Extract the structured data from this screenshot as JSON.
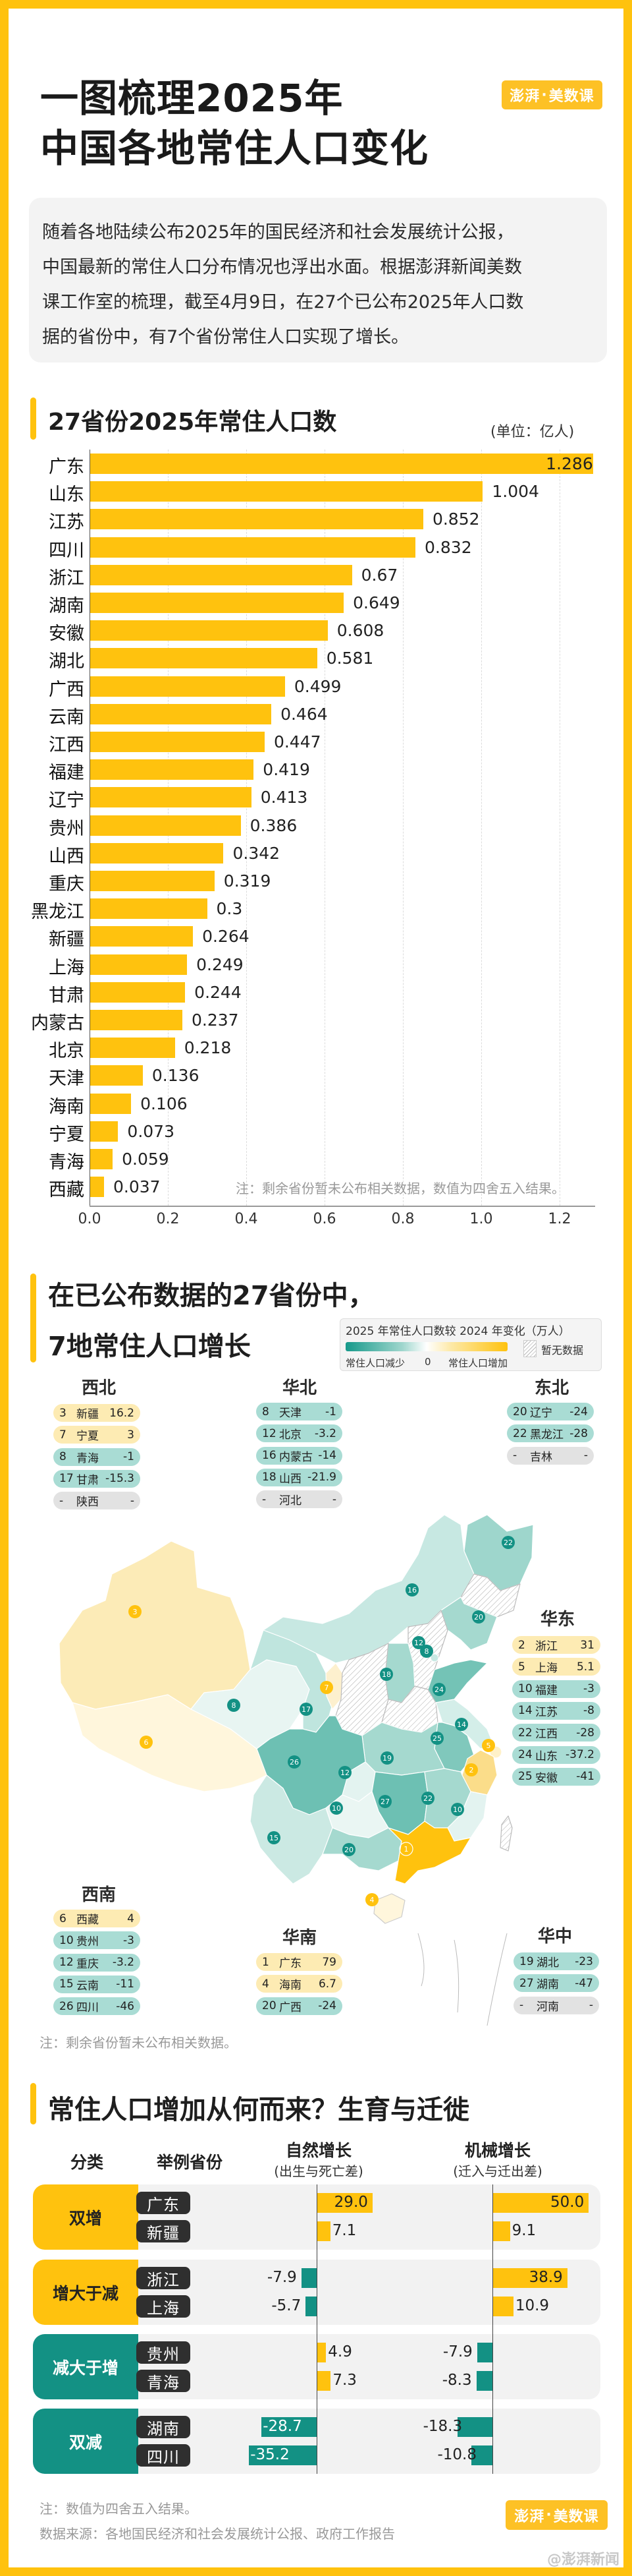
{
  "header": {
    "title_line1": "一图梳理2025年",
    "title_line2": "中国各地常住人口变化",
    "logo": {
      "left": "澎湃",
      "dot": "·",
      "right": "美数课"
    }
  },
  "intro": {
    "lines": [
      "随着各地陆续公布2025年的国民经济和社会发展统计公报，",
      "中国最新的常住人口分布情况也浮出水面。根据澎湃新闻美数",
      "课工作室的梳理，截至4月9日，在27个已公布2025年人口数",
      "据的省份中，有7个省份常住人口实现了增长。"
    ]
  },
  "colors": {
    "frame": "#FFC20E",
    "bar": "#FFC20E",
    "increase": "#FFC20E",
    "decrease": "#139184",
    "increase_pill": "#FDEBB3",
    "decrease_pill": "#A9DCD4",
    "no_data_pill": "#E2E2E2"
  },
  "chart_data": [
    {
      "type": "bar",
      "orientation": "horizontal",
      "title": "27省份2025年常住人口数",
      "unit": "(单位：亿人)",
      "categories": [
        "广东",
        "山东",
        "江苏",
        "四川",
        "浙江",
        "湖南",
        "安徽",
        "湖北",
        "广西",
        "云南",
        "江西",
        "福建",
        "辽宁",
        "贵州",
        "山西",
        "重庆",
        "黑龙江",
        "新疆",
        "上海",
        "甘肃",
        "内蒙古",
        "北京",
        "天津",
        "海南",
        "宁夏",
        "青海",
        "西藏"
      ],
      "values": [
        1.286,
        1.004,
        0.852,
        0.832,
        0.67,
        0.649,
        0.608,
        0.581,
        0.499,
        0.464,
        0.447,
        0.419,
        0.413,
        0.386,
        0.342,
        0.319,
        0.3,
        0.264,
        0.249,
        0.244,
        0.237,
        0.218,
        0.136,
        0.106,
        0.073,
        0.059,
        0.037
      ],
      "value_labels": [
        "1.286",
        "1.004",
        "0.852",
        "0.832",
        "0.67",
        "0.649",
        "0.608",
        "0.581",
        "0.499",
        "0.464",
        "0.447",
        "0.419",
        "0.413",
        "0.386",
        "0.342",
        "0.319",
        "0.3",
        "0.264",
        "0.249",
        "0.244",
        "0.237",
        "0.218",
        "0.136",
        "0.106",
        "0.073",
        "0.059",
        "0.037"
      ],
      "xticks": [
        "0.0",
        "0.2",
        "0.4",
        "0.6",
        "0.8",
        "1.0",
        "1.2"
      ],
      "xlim": [
        0,
        1.3
      ],
      "grid": "vertical dashed",
      "note": "注：剩余省份暂未公布相关数据，数值为四舍五入结果。",
      "xlabel": "",
      "ylabel": ""
    },
    {
      "type": "table",
      "title": "在已公布数据的27省份中，7地常住人口增长",
      "legend": {
        "title": "2025 年常住人口数较 2024 年变化（万人）",
        "low": "常住人口减少",
        "zero": "0",
        "high": "常住人口增加",
        "no_data": "暂无数据"
      },
      "regions": [
        {
          "name": "西北",
          "rows": [
            [
              "3",
              "新疆",
              "16.2",
              "up"
            ],
            [
              "7",
              "宁夏",
              "3",
              "up"
            ],
            [
              "8",
              "青海",
              "-1",
              "down"
            ],
            [
              "17",
              "甘肃",
              "-15.3",
              "down"
            ],
            [
              "-",
              "陕西",
              "-",
              "na"
            ]
          ]
        },
        {
          "name": "华北",
          "rows": [
            [
              "8",
              "天津",
              "-1",
              "down"
            ],
            [
              "12",
              "北京",
              "-3.2",
              "down"
            ],
            [
              "16",
              "内蒙古",
              "-14",
              "down"
            ],
            [
              "18",
              "山西",
              "-21.9",
              "down"
            ],
            [
              "-",
              "河北",
              "-",
              "na"
            ]
          ]
        },
        {
          "name": "东北",
          "rows": [
            [
              "20",
              "辽宁",
              "-24",
              "down"
            ],
            [
              "22",
              "黑龙江",
              "-28",
              "down"
            ],
            [
              "-",
              "吉林",
              "-",
              "na"
            ]
          ]
        },
        {
          "name": "华东",
          "rows": [
            [
              "2",
              "浙江",
              "31",
              "up"
            ],
            [
              "5",
              "上海",
              "5.1",
              "up"
            ],
            [
              "10",
              "福建",
              "-3",
              "down"
            ],
            [
              "14",
              "江苏",
              "-8",
              "down"
            ],
            [
              "22",
              "江西",
              "-28",
              "down"
            ],
            [
              "24",
              "山东",
              "-37.2",
              "down"
            ],
            [
              "25",
              "安徽",
              "-41",
              "down"
            ]
          ]
        },
        {
          "name": "西南",
          "rows": [
            [
              "6",
              "西藏",
              "4",
              "up"
            ],
            [
              "10",
              "贵州",
              "-3",
              "down"
            ],
            [
              "12",
              "重庆",
              "-3.2",
              "down"
            ],
            [
              "15",
              "云南",
              "-11",
              "down"
            ],
            [
              "26",
              "四川",
              "-46",
              "down"
            ]
          ]
        },
        {
          "name": "华南",
          "rows": [
            [
              "1",
              "广东",
              "79",
              "up"
            ],
            [
              "4",
              "海南",
              "6.7",
              "up"
            ],
            [
              "20",
              "广西",
              "-24",
              "down"
            ]
          ]
        },
        {
          "name": "华中",
          "rows": [
            [
              "19",
              "湖北",
              "-23",
              "down"
            ],
            [
              "27",
              "湖南",
              "-47",
              "down"
            ],
            [
              "-",
              "河南",
              "-",
              "na"
            ]
          ]
        }
      ],
      "note": "注：剩余省份暂未公布相关数据。"
    },
    {
      "type": "bar",
      "orientation": "diverging-horizontal",
      "title": "常住人口增加从何而来？生育与迁徙",
      "columns": {
        "category": "分类",
        "province": "举例省份",
        "natural": {
          "title": "自然增长",
          "sub": "(出生与死亡差)"
        },
        "migration": {
          "title": "机械增长",
          "sub": "(迁入与迁出差)"
        }
      },
      "groups": [
        {
          "category": "双增",
          "tone": "up",
          "rows": [
            {
              "province": "广东",
              "natural": 29.0,
              "natural_label": "29.0",
              "migration": 50.0,
              "migration_label": "50.0"
            },
            {
              "province": "新疆",
              "natural": 7.1,
              "natural_label": "7.1",
              "migration": 9.1,
              "migration_label": "9.1"
            }
          ]
        },
        {
          "category": "增大于减",
          "tone": "up",
          "rows": [
            {
              "province": "浙江",
              "natural": -7.9,
              "natural_label": "-7.9",
              "migration": 38.9,
              "migration_label": "38.9"
            },
            {
              "province": "上海",
              "natural": -5.7,
              "natural_label": "-5.7",
              "migration": 10.9,
              "migration_label": "10.9"
            }
          ]
        },
        {
          "category": "减大于增",
          "tone": "down",
          "rows": [
            {
              "province": "贵州",
              "natural": 4.9,
              "natural_label": "4.9",
              "migration": -7.9,
              "migration_label": "-7.9"
            },
            {
              "province": "青海",
              "natural": 7.3,
              "natural_label": "7.3",
              "migration": -8.3,
              "migration_label": "-8.3"
            }
          ]
        },
        {
          "category": "双减",
          "tone": "down",
          "rows": [
            {
              "province": "湖南",
              "natural": -28.7,
              "natural_label": "-28.7",
              "migration": -18.3,
              "migration_label": "-18.3"
            },
            {
              "province": "四川",
              "natural": -35.2,
              "natural_label": "-35.2",
              "migration": -10.8,
              "migration_label": "-10.8"
            }
          ]
        }
      ]
    }
  ],
  "section1": {
    "title": "27省份2025年常住人口数",
    "unit": "(单位：亿人)"
  },
  "section2": {
    "title_line1": "在已公布数据的27省份中，",
    "title_line2": "7地常住人口增长"
  },
  "section3": {
    "title": "常住人口增加从何而来？生育与迁徙"
  },
  "footer": {
    "note": "注：数值为四舍五入结果。",
    "source": "数据来源：各地国民经济和社会发展统计公报、政府工作报告",
    "watermark": "@澎湃新闻"
  }
}
